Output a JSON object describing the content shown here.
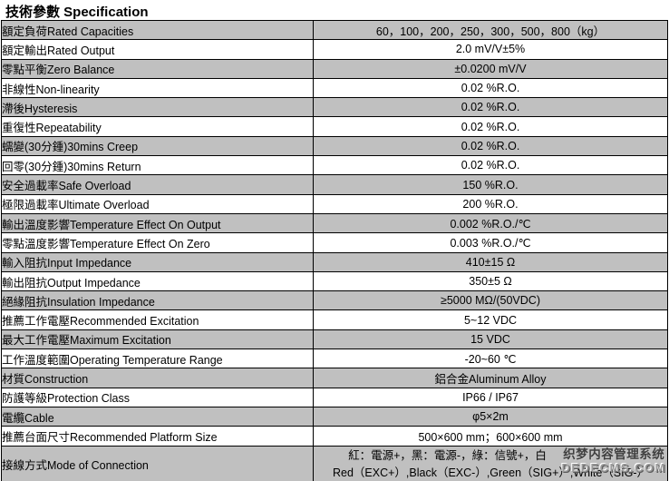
{
  "title": "技術參數 Specification",
  "table": {
    "rows": [
      {
        "label": "額定負荷Rated Capacities",
        "value": "60，100，200，250，300，500，800（kg）"
      },
      {
        "label": "額定輸出Rated Output",
        "value": "2.0 mV/V±5%"
      },
      {
        "label": "零點平衡Zero Balance",
        "value": "±0.0200 mV/V"
      },
      {
        "label": "非線性Non-linearity",
        "value": "0.02 %R.O."
      },
      {
        "label": "滯後Hysteresis",
        "value": "0.02 %R.O."
      },
      {
        "label": "重復性Repeatability",
        "value": "0.02 %R.O."
      },
      {
        "label": "蠕變(30分鍾)30mins Creep",
        "value": "0.02 %R.O."
      },
      {
        "label": "回零(30分鍾)30mins Return",
        "value": "0.02 %R.O."
      },
      {
        "label": "安全過載率Safe Overload",
        "value": "150 %R.O."
      },
      {
        "label": "極限過載率Ultimate Overload",
        "value": "200 %R.O."
      },
      {
        "label": "輸出溫度影響Temperature Effect On Output",
        "value": "0.002 %R.O./℃"
      },
      {
        "label": "零點溫度影響Temperature Effect On Zero",
        "value": "0.003 %R.O./℃"
      },
      {
        "label": "輸入阻抗Input Impedance",
        "value": "410±15 Ω"
      },
      {
        "label": "輸出阻抗Output Impedance",
        "value": "350±5 Ω"
      },
      {
        "label": "絕緣阻抗Insulation Impedance",
        "value": "≥5000 MΩ/(50VDC)"
      },
      {
        "label": "推薦工作電壓Recommended Excitation",
        "value": "5~12 VDC"
      },
      {
        "label": "最大工作電壓Maximum Excitation",
        "value": "15 VDC"
      },
      {
        "label": "工作溫度範圍Operating Temperature Range",
        "value": "-20~60 ℃"
      },
      {
        "label": "材質Construction",
        "value": "鋁合金Aluminum Alloy"
      },
      {
        "label": "防護等級Protection Class",
        "value": "IP66 / IP67"
      },
      {
        "label": "電纜Cable",
        "value": "φ5×2m"
      },
      {
        "label": "推薦台面尺寸Recommended Platform Size",
        "value": "500×600 mm；600×600 mm"
      }
    ],
    "connection_row": {
      "label": "接線方式Mode of Connection",
      "value_line1": "紅：電源+，黑：電源-，綠：信號+，白",
      "value_line2": "Red（EXC+）,Black（EXC-）,Green（SIG+）,White（SIG-）"
    }
  },
  "watermark": {
    "line1": "织梦内容管理系统",
    "line2": "DEDECMS.COM"
  },
  "colors": {
    "row_gray": "#c0c0c0",
    "border": "#000000",
    "background": "#ffffff"
  }
}
